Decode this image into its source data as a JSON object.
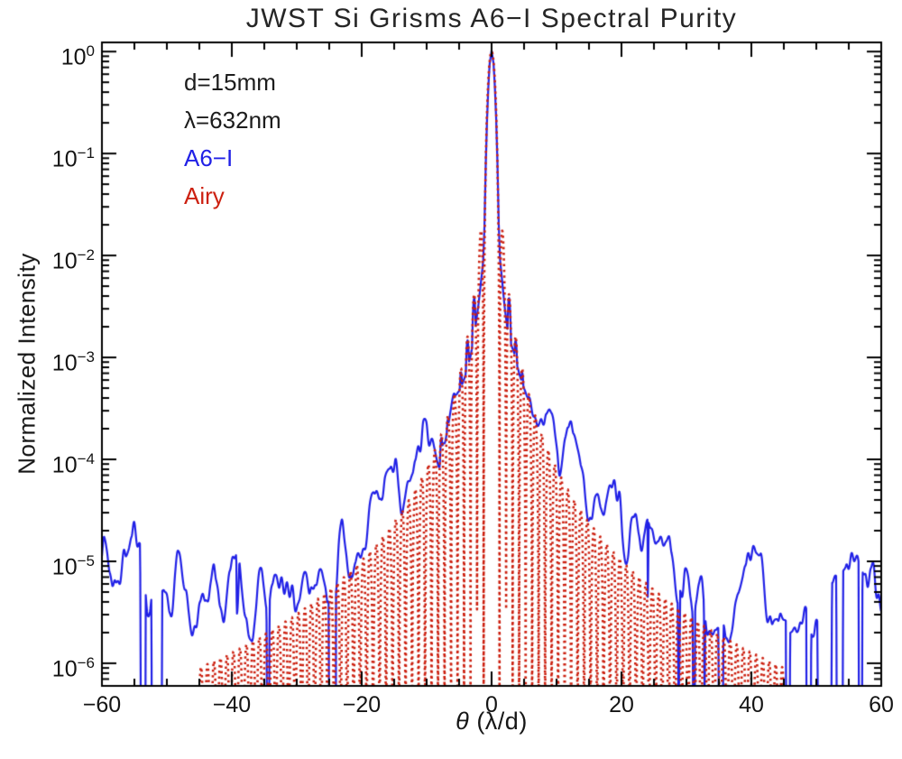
{
  "chart_data": {
    "type": "line",
    "title": "JWST Si Grisms A6−I Spectral Purity",
    "xlabel_symbol": "θ",
    "xlabel_units": " (λ/d)",
    "ylabel": "Normalized Intensity",
    "xlim": [
      -60,
      60
    ],
    "yscale": "log",
    "ylim": [
      6e-07,
      1.23
    ],
    "x_ticks": [
      -60,
      -40,
      -20,
      0,
      20,
      40,
      60
    ],
    "x_minor_step": 5,
    "y_tick_exponents": [
      0,
      -1,
      -2,
      -3,
      -4,
      -5,
      -6
    ],
    "grid": false,
    "axis_color": "#000000",
    "annotations": [
      {
        "text": "d=15mm",
        "color": "#1c1c1c"
      },
      {
        "text": "λ=632nm",
        "color": "#1c1c1c"
      },
      {
        "text": "A6−I",
        "color": "#2121e6"
      },
      {
        "text": "Airy",
        "color": "#cc2010"
      }
    ],
    "series": [
      {
        "name": "A6−I",
        "color": "#2121e6",
        "line_style": "solid",
        "line_width": 2.2,
        "peak": 1.0,
        "noise_floor": 7e-06,
        "wing_excess_vs_airy": 1.9,
        "envelope_points": [
          [
            -60,
            7e-06
          ],
          [
            -56,
            9e-06
          ],
          [
            -52,
            6e-06
          ],
          [
            -48,
            4.5e-06
          ],
          [
            -44,
            5e-06
          ],
          [
            -40,
            5e-06
          ],
          [
            -36,
            4e-06
          ],
          [
            -32,
            5e-06
          ],
          [
            -28,
            7e-06
          ],
          [
            -25,
            1e-05
          ],
          [
            -22,
            1.5e-05
          ],
          [
            -20,
            2e-05
          ],
          [
            -17,
            3.2e-05
          ],
          [
            -15,
            4.5e-05
          ],
          [
            -13,
            6.5e-05
          ],
          [
            -11,
            0.0001
          ],
          [
            -9,
            0.00015
          ],
          [
            -7,
            0.00023
          ],
          [
            -6,
            0.0003
          ],
          [
            -5,
            0.00045
          ],
          [
            -4,
            0.0007
          ],
          [
            -3.2,
            0.0011
          ],
          [
            -2.6,
            0.0018
          ],
          [
            -2.0,
            0.0035
          ],
          [
            -1.6,
            0.006
          ],
          [
            -1.3,
            0.009
          ],
          [
            -1.1,
            0.02
          ],
          [
            -0.9,
            0.08
          ],
          [
            -0.7,
            0.22
          ],
          [
            -0.5,
            0.45
          ],
          [
            -0.3,
            0.75
          ],
          [
            0,
            1.0
          ],
          [
            0.3,
            0.75
          ],
          [
            0.5,
            0.45
          ],
          [
            0.7,
            0.22
          ],
          [
            0.9,
            0.08
          ],
          [
            1.1,
            0.02
          ],
          [
            1.3,
            0.009
          ],
          [
            1.6,
            0.006
          ],
          [
            2.0,
            0.0035
          ],
          [
            2.6,
            0.0018
          ],
          [
            3.2,
            0.0011
          ],
          [
            4,
            0.0007
          ],
          [
            5,
            0.00045
          ],
          [
            6,
            0.0003
          ],
          [
            7,
            0.00023
          ],
          [
            9,
            0.00015
          ],
          [
            11,
            0.0001
          ],
          [
            13,
            6.5e-05
          ],
          [
            15,
            4.5e-05
          ],
          [
            17,
            3.2e-05
          ],
          [
            20,
            2e-05
          ],
          [
            22,
            1.5e-05
          ],
          [
            25,
            1e-05
          ],
          [
            28,
            7e-06
          ],
          [
            32,
            5e-06
          ],
          [
            36,
            4e-06
          ],
          [
            40,
            5e-06
          ],
          [
            44,
            5e-06
          ],
          [
            48,
            4.5e-06
          ],
          [
            52,
            6e-06
          ],
          [
            56,
            9e-06
          ],
          [
            60,
            7e-06
          ]
        ]
      },
      {
        "name": "Airy",
        "color": "#cc2010",
        "line_style": "dotted",
        "line_width": 2.6,
        "model": "airy_pattern",
        "peak": 1.0,
        "first_zero": 1.22,
        "sidelobe_peaks": [
          [
            1.63,
            0.0175
          ],
          [
            2.68,
            0.0042
          ],
          [
            3.7,
            0.0016
          ],
          [
            4.71,
            0.00078
          ],
          [
            5.72,
            0.00044
          ]
        ],
        "far_envelope_coeff": 0.0821,
        "visible_extent": 45
      }
    ]
  }
}
